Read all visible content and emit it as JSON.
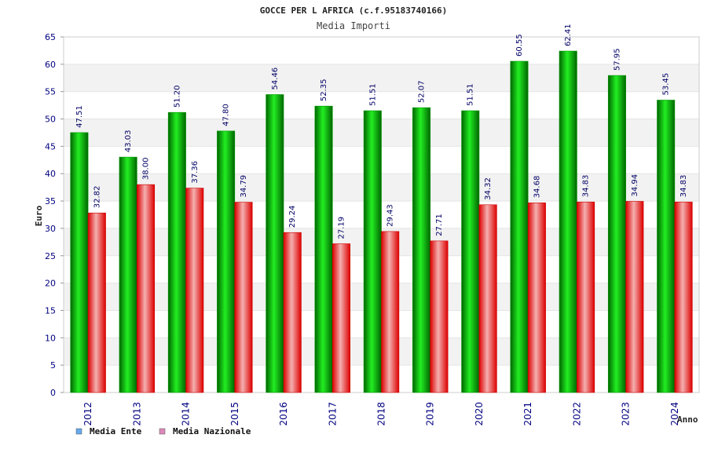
{
  "chart_data": {
    "type": "bar",
    "title": "GOCCE PER L AFRICA (c.f.95183740166)",
    "subtitle": "Media Importi",
    "xlabel": "Anno",
    "ylabel": "Euro",
    "ylim": [
      0,
      65
    ],
    "yticks": [
      "0",
      "5",
      "10",
      "15",
      "20",
      "25",
      "30",
      "35",
      "40",
      "45",
      "50",
      "55",
      "60",
      "65"
    ],
    "grid": true,
    "legend_position": "bottom-left",
    "categories": [
      "2012",
      "2013",
      "2014",
      "2015",
      "2016",
      "2017",
      "2018",
      "2019",
      "2020",
      "2021",
      "2022",
      "2023",
      "2024"
    ],
    "series": [
      {
        "name": "Media Ente",
        "color": "#00c000",
        "legend_color": "#66aaee",
        "values": [
          47.51,
          43.03,
          51.2,
          47.8,
          54.46,
          52.35,
          51.51,
          52.07,
          51.51,
          60.55,
          62.41,
          57.95,
          53.45
        ],
        "labels": [
          "47.51",
          "43.03",
          "51.20",
          "47.80",
          "54.46",
          "52.35",
          "51.51",
          "52.07",
          "51.51",
          "60.55",
          "62.41",
          "57.95",
          "53.45"
        ]
      },
      {
        "name": "Media Nazionale",
        "color": "#ee1111",
        "legend_color": "#dd88bb",
        "values": [
          32.82,
          38.0,
          37.36,
          34.79,
          29.24,
          27.19,
          29.43,
          27.71,
          34.32,
          34.68,
          34.83,
          34.94,
          34.83
        ],
        "labels": [
          "32.82",
          "38.00",
          "37.36",
          "34.79",
          "29.24",
          "27.19",
          "29.43",
          "27.71",
          "34.32",
          "34.68",
          "34.83",
          "34.94",
          "34.83"
        ]
      }
    ]
  }
}
